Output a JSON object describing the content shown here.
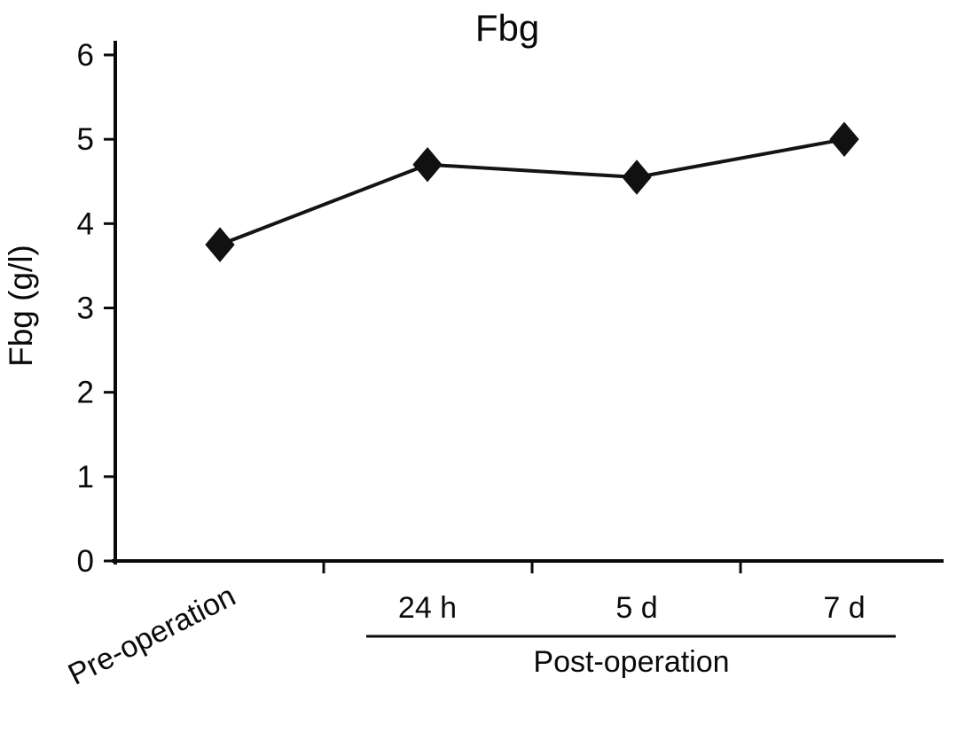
{
  "chart_data": {
    "type": "line",
    "title": "Fbg",
    "ylabel": "Fbg (g/l)",
    "categories": [
      "Pre-operation",
      "24 h",
      "5 d",
      "7 d"
    ],
    "values": [
      3.75,
      4.7,
      4.55,
      5.0
    ],
    "ylim": [
      0,
      6
    ],
    "yticks": [
      0,
      1,
      2,
      3,
      4,
      5,
      6
    ],
    "x_group_label": "Post-operation",
    "x_group_members": [
      "24 h",
      "5 d",
      "7 d"
    ],
    "marker": "diamond",
    "line_color": "#141414",
    "grid": false,
    "legend": "none"
  }
}
